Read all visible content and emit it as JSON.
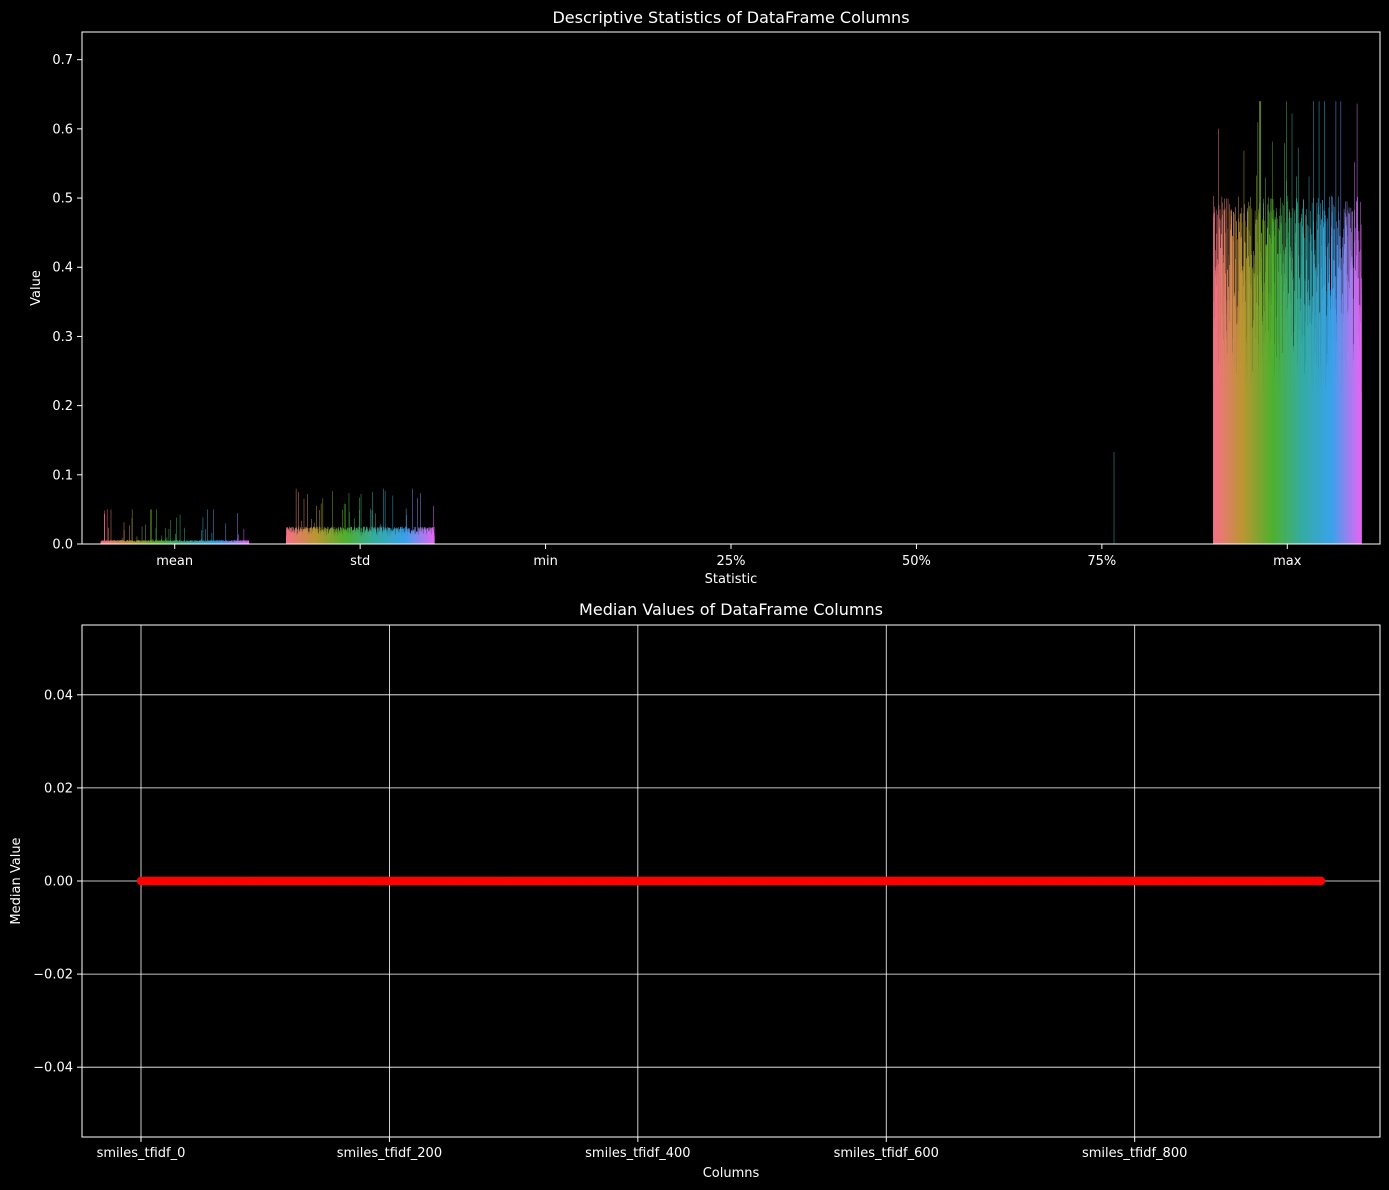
{
  "chart_data": [
    {
      "type": "bar",
      "title": "Descriptive Statistics of DataFrame Columns",
      "xlabel": "Statistic",
      "ylabel": "Value",
      "categories": [
        "mean",
        "std",
        "min",
        "25%",
        "50%",
        "75%",
        "max"
      ],
      "ylim": [
        0,
        0.74
      ],
      "yticks": [
        0.0,
        0.1,
        0.2,
        0.3,
        0.4,
        0.5,
        0.6,
        0.7
      ],
      "ytick_labels": [
        "0.0",
        "0.1",
        "0.2",
        "0.3",
        "0.4",
        "0.5",
        "0.6",
        "0.7"
      ],
      "grid": false,
      "legend": "none",
      "series_count": 960,
      "palette": [
        "#f77189",
        "#bb9832",
        "#50b131",
        "#36ada4",
        "#3ba3ec",
        "#e866f4"
      ],
      "stat_summary": {
        "mean": {
          "typical": 0.004,
          "max": 0.05
        },
        "std": {
          "typical": 0.018,
          "max": 0.08
        },
        "min": {
          "typical": 0.0,
          "max": 0.0
        },
        "25%": {
          "typical": 0.0,
          "max": 0.0
        },
        "50%": {
          "typical": 0.0,
          "max": 0.0
        },
        "75%": {
          "typical": 0.0,
          "max": 0.133
        },
        "max": {
          "typical": 0.36,
          "max": 0.64
        }
      }
    },
    {
      "type": "line",
      "title": "Median Values of DataFrame Columns",
      "xlabel": "Columns",
      "ylabel": "Median Value",
      "x_count": 951,
      "y_constant": 0.0,
      "ylim": [
        -0.055,
        0.055
      ],
      "yticks": [
        -0.04,
        -0.02,
        0.0,
        0.02,
        0.04
      ],
      "ytick_labels": [
        "−0.04",
        "−0.02",
        "0.00",
        "0.02",
        "0.04"
      ],
      "xticks": [
        0,
        200,
        400,
        600,
        800
      ],
      "xtick_labels": [
        "smiles_tfidf_0",
        "smiles_tfidf_200",
        "smiles_tfidf_400",
        "smiles_tfidf_600",
        "smiles_tfidf_800"
      ],
      "grid": true,
      "line_color": "#ff0000",
      "marker": "circle"
    }
  ]
}
